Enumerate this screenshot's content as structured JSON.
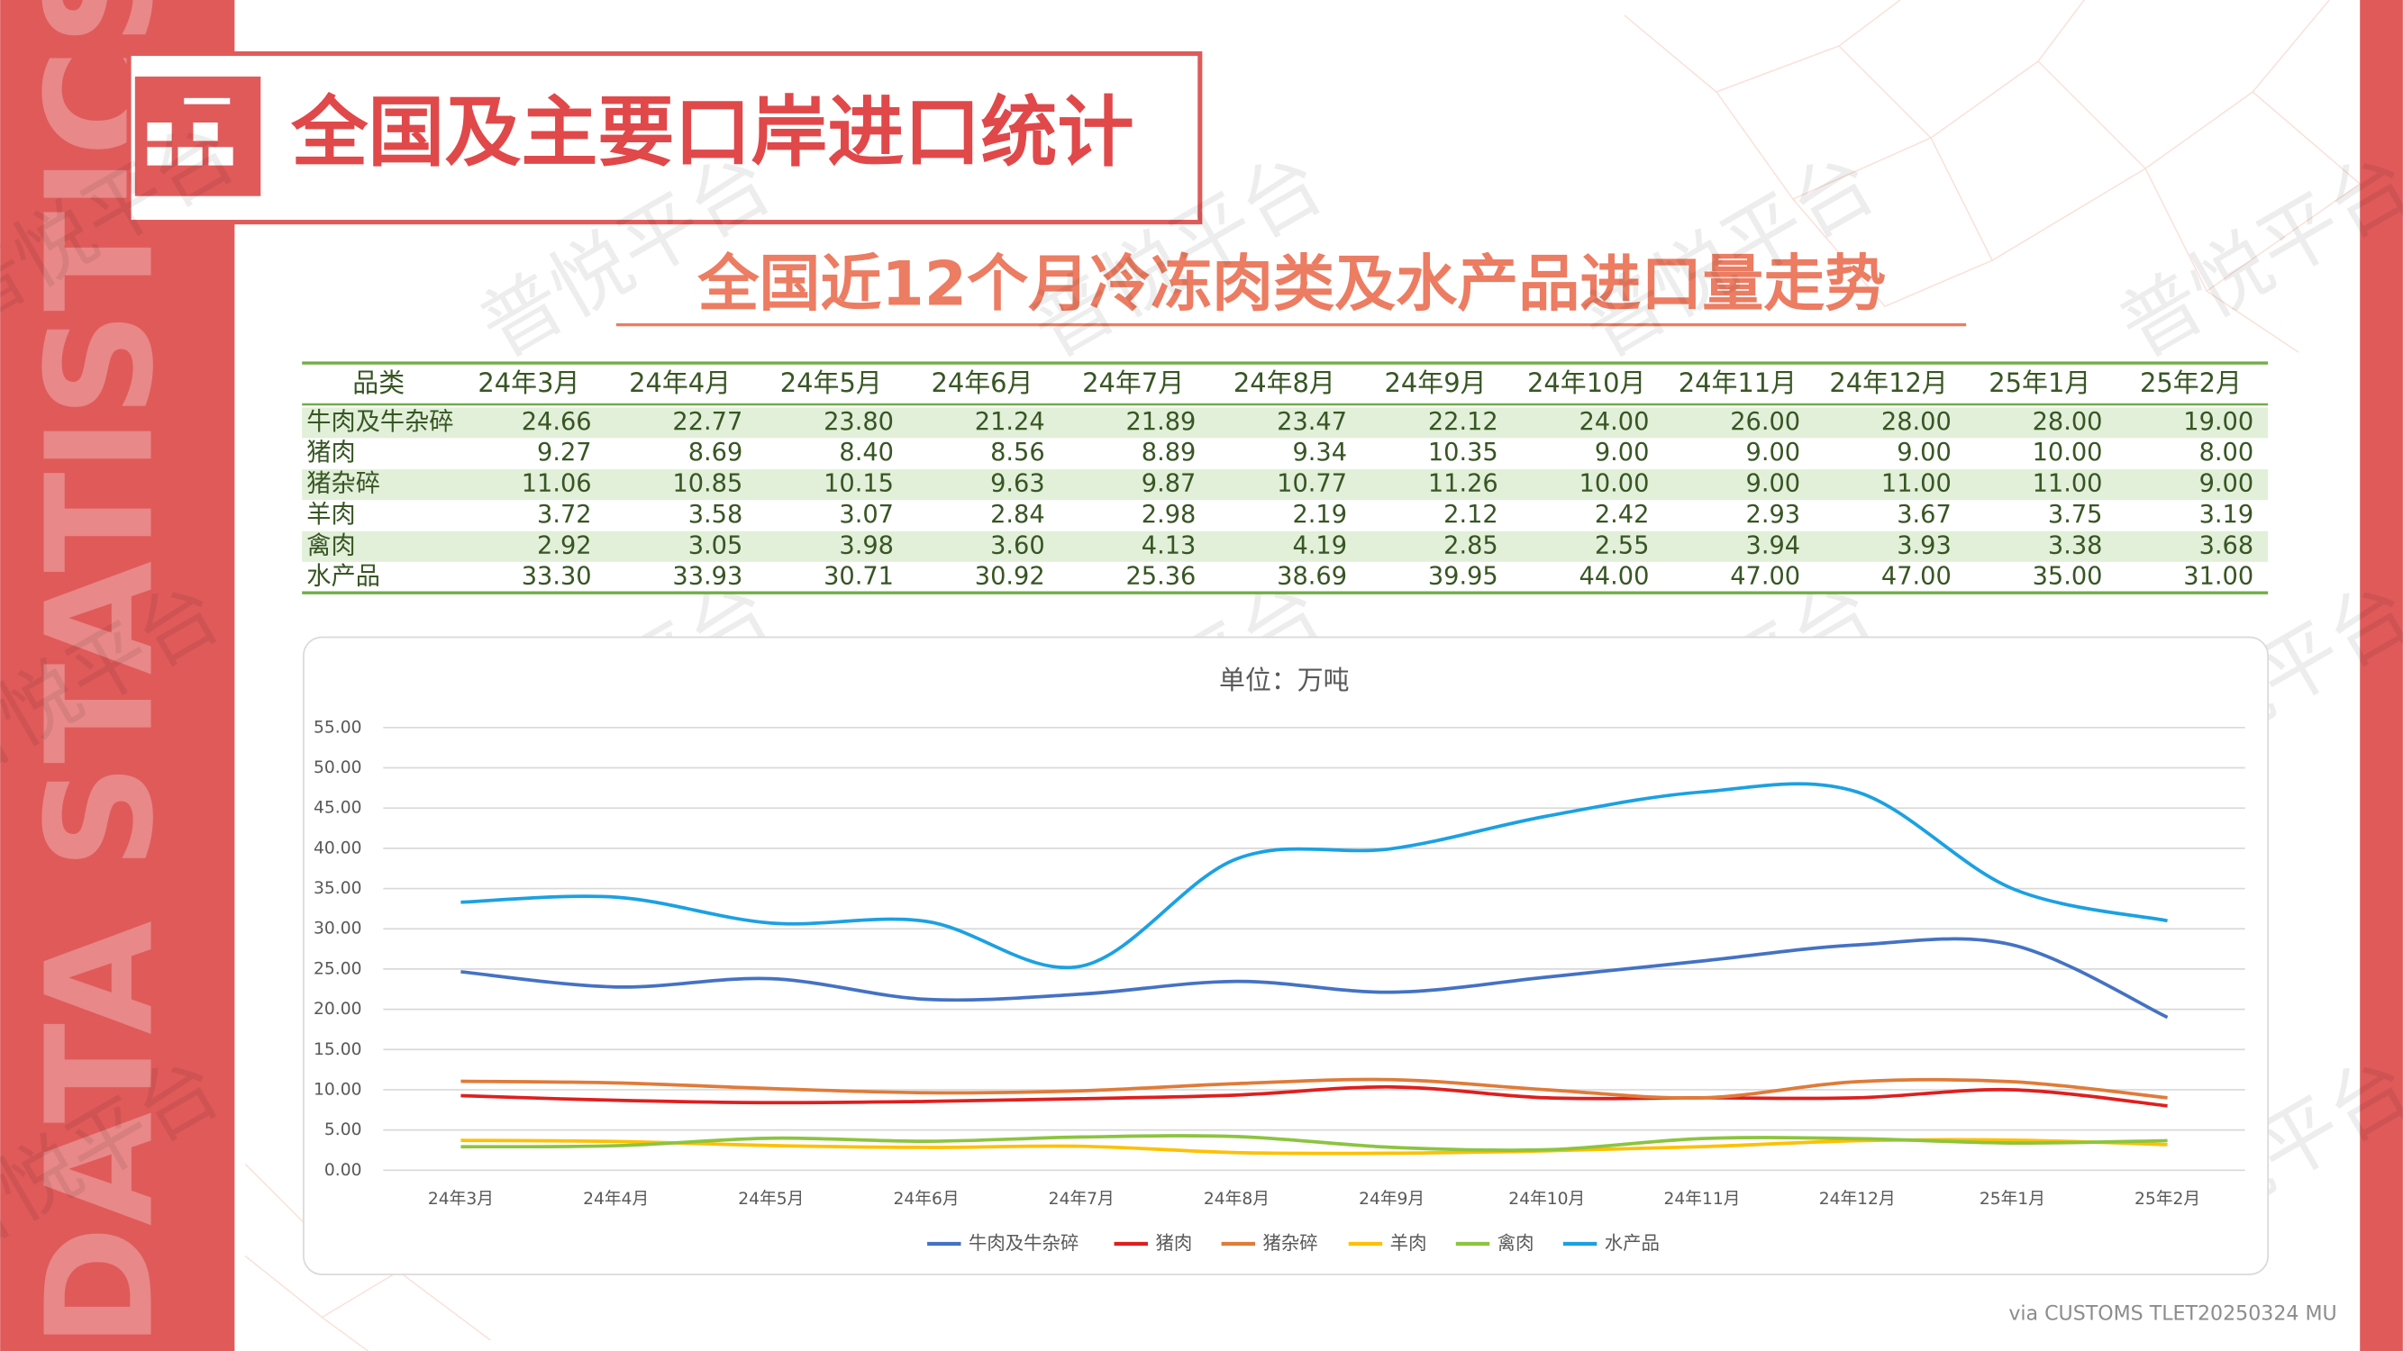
{
  "header": {
    "title": "全国及主要口岸进口统计",
    "subtitle": "全国近12个月冷冻肉类及水产品进口量走势",
    "side_text": "DATA STATISTICS REPORT",
    "watermark": "普悦平台"
  },
  "table": {
    "header": [
      "品类",
      "24年3月",
      "24年4月",
      "24年5月",
      "24年6月",
      "24年7月",
      "24年8月",
      "24年9月",
      "24年10月",
      "24年11月",
      "24年12月",
      "25年1月",
      "25年2月"
    ],
    "rows": [
      [
        "牛肉及牛杂碎",
        "24.66",
        "22.77",
        "23.80",
        "21.24",
        "21.89",
        "23.47",
        "22.12",
        "24.00",
        "26.00",
        "28.00",
        "28.00",
        "19.00"
      ],
      [
        "猪肉",
        "9.27",
        "8.69",
        "8.40",
        "8.56",
        "8.89",
        "9.34",
        "10.35",
        "9.00",
        "9.00",
        "9.00",
        "10.00",
        "8.00"
      ],
      [
        "猪杂碎",
        "11.06",
        "10.85",
        "10.15",
        "9.63",
        "9.87",
        "10.77",
        "11.26",
        "10.00",
        "9.00",
        "11.00",
        "11.00",
        "9.00"
      ],
      [
        "羊肉",
        "3.72",
        "3.58",
        "3.07",
        "2.84",
        "2.98",
        "2.19",
        "2.12",
        "2.42",
        "2.93",
        "3.67",
        "3.75",
        "3.19"
      ],
      [
        "禽肉",
        "2.92",
        "3.05",
        "3.98",
        "3.60",
        "4.13",
        "4.19",
        "2.85",
        "2.55",
        "3.94",
        "3.93",
        "3.38",
        "3.68"
      ],
      [
        "水产品",
        "33.30",
        "33.93",
        "30.71",
        "30.92",
        "25.36",
        "38.69",
        "39.95",
        "44.00",
        "47.00",
        "47.00",
        "35.00",
        "31.00"
      ]
    ]
  },
  "chart_data": {
    "type": "line",
    "title": "单位：万吨",
    "categories": [
      "24年3月",
      "24年4月",
      "24年5月",
      "24年6月",
      "24年7月",
      "24年8月",
      "24年9月",
      "24年10月",
      "24年11月",
      "24年12月",
      "25年1月",
      "25年2月"
    ],
    "series": [
      {
        "name": "牛肉及牛杂碎",
        "color": "#4472c4",
        "values": [
          24.66,
          22.77,
          23.8,
          21.24,
          21.89,
          23.47,
          22.12,
          24,
          26,
          28,
          28,
          19
        ]
      },
      {
        "name": "猪肉",
        "color": "#e01e1e",
        "values": [
          9.27,
          8.69,
          8.4,
          8.56,
          8.89,
          9.34,
          10.35,
          9,
          9,
          9,
          10,
          8
        ]
      },
      {
        "name": "猪杂碎",
        "color": "#e07b39",
        "values": [
          11.06,
          10.85,
          10.15,
          9.63,
          9.87,
          10.77,
          11.26,
          10,
          9,
          11,
          11,
          9
        ]
      },
      {
        "name": "羊肉",
        "color": "#ffc000",
        "values": [
          3.72,
          3.58,
          3.07,
          2.84,
          2.98,
          2.19,
          2.12,
          2.42,
          2.93,
          3.67,
          3.75,
          3.19
        ]
      },
      {
        "name": "禽肉",
        "color": "#8cc43f",
        "values": [
          2.92,
          3.05,
          3.98,
          3.6,
          4.13,
          4.19,
          2.85,
          2.55,
          3.94,
          3.93,
          3.38,
          3.68
        ]
      },
      {
        "name": "水产品",
        "color": "#1ba1e2",
        "values": [
          33.3,
          33.93,
          30.71,
          30.92,
          25.36,
          38.69,
          39.95,
          44,
          47,
          47,
          35,
          31
        ]
      }
    ],
    "ylim": [
      0,
      55
    ],
    "yticks": [
      {
        "value": 0,
        "label": "0.00"
      },
      {
        "value": 5,
        "label": "5.00"
      },
      {
        "value": 10,
        "label": "10.00"
      },
      {
        "value": 15,
        "label": "15.00"
      },
      {
        "value": 20,
        "label": "20.00"
      },
      {
        "value": 25,
        "label": "25.00"
      },
      {
        "value": 30,
        "label": "30.00"
      },
      {
        "value": 35,
        "label": "35.00"
      },
      {
        "value": 40,
        "label": "40.00"
      },
      {
        "value": 45,
        "label": "45.00"
      },
      {
        "value": 50,
        "label": "50.00"
      },
      {
        "value": 55,
        "label": "55.00"
      }
    ],
    "grid": true,
    "legend": "bottom",
    "smooth": true
  },
  "footer": {
    "source": "via CUSTOMS TLET20250324 MU"
  }
}
